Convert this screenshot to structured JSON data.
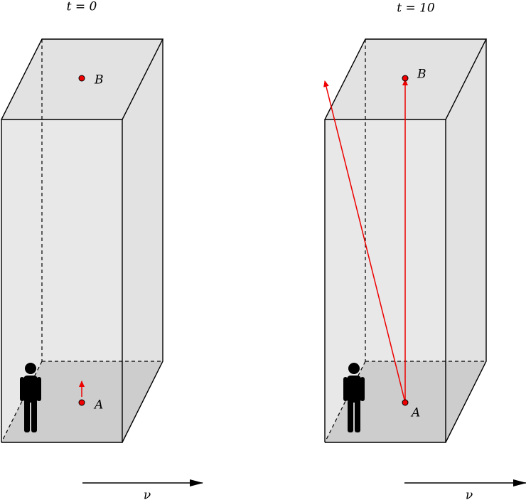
{
  "panels": [
    {
      "title": "t = 0",
      "point_b": "B",
      "point_a": "A",
      "velocity": "ν"
    },
    {
      "title": "t = 10",
      "point_b": "B",
      "point_a": "A",
      "velocity": "ν"
    }
  ]
}
